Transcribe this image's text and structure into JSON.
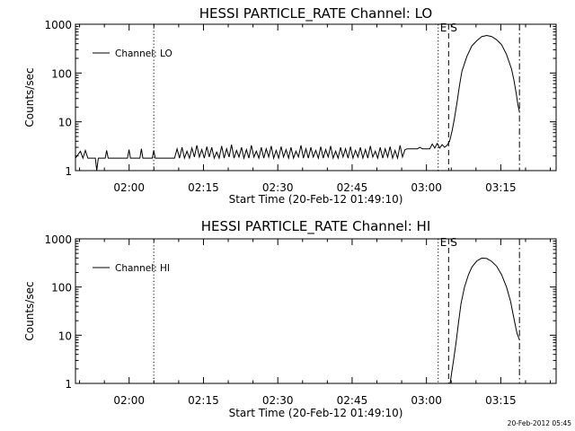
{
  "stamp": "20-Feb-2012 05:45",
  "chart_data": [
    {
      "type": "line",
      "title": "HESSI PARTICLE_RATE Channel: LO",
      "xlabel": "Start Time (20-Feb-12 01:49:10)",
      "ylabel": "Counts/sec",
      "y_scale": "log",
      "ylim": [
        1,
        1000
      ],
      "xlim_minutes": [
        0,
        97
      ],
      "xticks": [
        {
          "label": "02:00",
          "minutes": 10.83
        },
        {
          "label": "02:15",
          "minutes": 25.83
        },
        {
          "label": "02:30",
          "minutes": 40.83
        },
        {
          "label": "02:45",
          "minutes": 55.83
        },
        {
          "label": "03:00",
          "minutes": 70.83
        },
        {
          "label": "03:15",
          "minutes": 85.83
        }
      ],
      "yticks": [
        {
          "label": "1",
          "value": 1
        },
        {
          "label": "10",
          "value": 10
        },
        {
          "label": "100",
          "value": 100
        },
        {
          "label": "1000",
          "value": 1000
        }
      ],
      "legend": {
        "label": "Channel: LO",
        "placement": "top-left"
      },
      "markers": [
        {
          "minutes": 15.8,
          "style": "dotted",
          "label": ""
        },
        {
          "minutes": 73.2,
          "style": "dotted",
          "label": "E"
        },
        {
          "minutes": 75.3,
          "style": "dashed",
          "label": "S"
        },
        {
          "minutes": 89.6,
          "style": "dashdot",
          "label": ""
        }
      ],
      "series": [
        {
          "name": "Channel: LO",
          "points": [
            [
              0.0,
              1.8
            ],
            [
              1.0,
              2.5
            ],
            [
              1.5,
              1.8
            ],
            [
              2.0,
              2.6
            ],
            [
              2.5,
              1.8
            ],
            [
              3.0,
              1.8
            ],
            [
              4.0,
              1.8
            ],
            [
              4.3,
              1.0
            ],
            [
              4.6,
              1.8
            ],
            [
              6.0,
              1.8
            ],
            [
              6.3,
              2.6
            ],
            [
              6.6,
              1.8
            ],
            [
              10.5,
              1.8
            ],
            [
              10.8,
              2.7
            ],
            [
              11.1,
              1.8
            ],
            [
              13.0,
              1.8
            ],
            [
              13.3,
              2.8
            ],
            [
              13.6,
              1.8
            ],
            [
              15.5,
              1.8
            ],
            [
              15.8,
              2.6
            ],
            [
              16.1,
              1.8
            ],
            [
              20.0,
              1.8
            ],
            [
              20.5,
              2.8
            ],
            [
              21.0,
              1.8
            ],
            [
              21.5,
              3.0
            ],
            [
              22.0,
              1.8
            ],
            [
              22.5,
              2.5
            ],
            [
              23.0,
              1.8
            ],
            [
              23.5,
              2.9
            ],
            [
              24.0,
              1.9
            ],
            [
              24.5,
              3.3
            ],
            [
              25.0,
              1.9
            ],
            [
              25.5,
              2.7
            ],
            [
              26.0,
              1.8
            ],
            [
              26.5,
              3.1
            ],
            [
              27.0,
              1.9
            ],
            [
              27.5,
              3.0
            ],
            [
              28.0,
              1.8
            ],
            [
              28.5,
              2.4
            ],
            [
              29.0,
              1.8
            ],
            [
              29.5,
              3.2
            ],
            [
              30.0,
              1.8
            ],
            [
              30.5,
              2.8
            ],
            [
              31.0,
              1.9
            ],
            [
              31.5,
              3.4
            ],
            [
              32.0,
              1.8
            ],
            [
              32.5,
              2.6
            ],
            [
              33.0,
              1.9
            ],
            [
              33.5,
              3.0
            ],
            [
              34.0,
              1.8
            ],
            [
              34.5,
              2.7
            ],
            [
              35.0,
              1.8
            ],
            [
              35.5,
              3.3
            ],
            [
              36.0,
              1.9
            ],
            [
              36.5,
              2.5
            ],
            [
              37.0,
              1.8
            ],
            [
              37.5,
              3.0
            ],
            [
              38.0,
              1.8
            ],
            [
              38.5,
              2.8
            ],
            [
              39.0,
              1.9
            ],
            [
              39.5,
              3.2
            ],
            [
              40.0,
              1.8
            ],
            [
              40.5,
              2.6
            ],
            [
              41.0,
              1.8
            ],
            [
              41.5,
              3.1
            ],
            [
              42.0,
              1.9
            ],
            [
              42.5,
              2.7
            ],
            [
              43.0,
              1.8
            ],
            [
              43.5,
              3.0
            ],
            [
              44.0,
              1.8
            ],
            [
              44.5,
              2.5
            ],
            [
              45.0,
              1.9
            ],
            [
              45.5,
              3.3
            ],
            [
              46.0,
              1.8
            ],
            [
              46.5,
              2.8
            ],
            [
              47.0,
              1.8
            ],
            [
              47.5,
              3.0
            ],
            [
              48.0,
              1.9
            ],
            [
              48.5,
              2.6
            ],
            [
              49.0,
              1.8
            ],
            [
              49.5,
              3.1
            ],
            [
              50.0,
              1.8
            ],
            [
              50.5,
              2.7
            ],
            [
              51.0,
              1.9
            ],
            [
              51.5,
              3.2
            ],
            [
              52.0,
              1.8
            ],
            [
              52.5,
              2.5
            ],
            [
              53.0,
              1.8
            ],
            [
              53.5,
              3.0
            ],
            [
              54.0,
              1.9
            ],
            [
              54.5,
              2.8
            ],
            [
              55.0,
              1.8
            ],
            [
              55.5,
              3.1
            ],
            [
              56.0,
              1.8
            ],
            [
              56.5,
              2.6
            ],
            [
              57.0,
              1.9
            ],
            [
              57.5,
              3.0
            ],
            [
              58.0,
              1.8
            ],
            [
              58.5,
              2.7
            ],
            [
              59.0,
              1.8
            ],
            [
              59.5,
              3.2
            ],
            [
              60.0,
              1.9
            ],
            [
              60.5,
              2.5
            ],
            [
              61.0,
              1.8
            ],
            [
              61.5,
              3.0
            ],
            [
              62.0,
              1.8
            ],
            [
              62.5,
              2.8
            ],
            [
              63.0,
              1.9
            ],
            [
              63.5,
              3.1
            ],
            [
              64.0,
              1.8
            ],
            [
              64.5,
              2.6
            ],
            [
              65.0,
              1.8
            ],
            [
              65.5,
              3.3
            ],
            [
              66.0,
              1.9
            ],
            [
              66.5,
              2.7
            ],
            [
              67.0,
              2.8
            ],
            [
              69.0,
              2.8
            ],
            [
              69.5,
              3.0
            ],
            [
              70.0,
              2.8
            ],
            [
              71.5,
              2.8
            ],
            [
              72.0,
              3.5
            ],
            [
              72.5,
              2.9
            ],
            [
              73.0,
              3.6
            ],
            [
              73.5,
              2.9
            ],
            [
              74.0,
              3.4
            ],
            [
              74.5,
              3.0
            ],
            [
              75.0,
              3.3
            ],
            [
              75.5,
              4.0
            ],
            [
              76.0,
              6.5
            ],
            [
              76.5,
              12
            ],
            [
              77.0,
              25
            ],
            [
              77.5,
              55
            ],
            [
              78.0,
              110
            ],
            [
              79.0,
              220
            ],
            [
              80.0,
              360
            ],
            [
              81.0,
              460
            ],
            [
              82.0,
              560
            ],
            [
              83.0,
              590
            ],
            [
              84.0,
              560
            ],
            [
              85.0,
              480
            ],
            [
              86.0,
              380
            ],
            [
              87.0,
              240
            ],
            [
              88.0,
              120
            ],
            [
              88.5,
              70
            ],
            [
              89.0,
              35
            ],
            [
              89.3,
              22
            ],
            [
              89.6,
              16
            ]
          ]
        }
      ]
    },
    {
      "type": "line",
      "title": "HESSI PARTICLE_RATE Channel: HI",
      "xlabel": "Start Time (20-Feb-12 01:49:10)",
      "ylabel": "Counts/sec",
      "y_scale": "log",
      "ylim": [
        1,
        1000
      ],
      "xlim_minutes": [
        0,
        97
      ],
      "xticks": [
        {
          "label": "02:00",
          "minutes": 10.83
        },
        {
          "label": "02:15",
          "minutes": 25.83
        },
        {
          "label": "02:30",
          "minutes": 40.83
        },
        {
          "label": "02:45",
          "minutes": 55.83
        },
        {
          "label": "03:00",
          "minutes": 70.83
        },
        {
          "label": "03:15",
          "minutes": 85.83
        }
      ],
      "yticks": [
        {
          "label": "1",
          "value": 1
        },
        {
          "label": "10",
          "value": 10
        },
        {
          "label": "100",
          "value": 100
        },
        {
          "label": "1000",
          "value": 1000
        }
      ],
      "legend": {
        "label": "Channel: HI",
        "placement": "top-left"
      },
      "markers": [
        {
          "minutes": 15.8,
          "style": "dotted",
          "label": ""
        },
        {
          "minutes": 73.2,
          "style": "dotted",
          "label": "E"
        },
        {
          "minutes": 75.3,
          "style": "dashed",
          "label": "S"
        },
        {
          "minutes": 89.6,
          "style": "dashdot",
          "label": ""
        }
      ],
      "series": [
        {
          "name": "Channel: HI",
          "points": [
            [
              75.6,
              1.0
            ],
            [
              75.9,
              1.6
            ],
            [
              76.3,
              3
            ],
            [
              76.8,
              7
            ],
            [
              77.3,
              18
            ],
            [
              77.8,
              45
            ],
            [
              78.5,
              100
            ],
            [
              79.3,
              180
            ],
            [
              80.0,
              260
            ],
            [
              81.0,
              350
            ],
            [
              82.0,
              400
            ],
            [
              83.0,
              390
            ],
            [
              84.0,
              340
            ],
            [
              85.0,
              270
            ],
            [
              86.0,
              180
            ],
            [
              87.0,
              100
            ],
            [
              87.8,
              50
            ],
            [
              88.5,
              22
            ],
            [
              89.1,
              11
            ],
            [
              89.6,
              8
            ]
          ]
        }
      ]
    }
  ]
}
